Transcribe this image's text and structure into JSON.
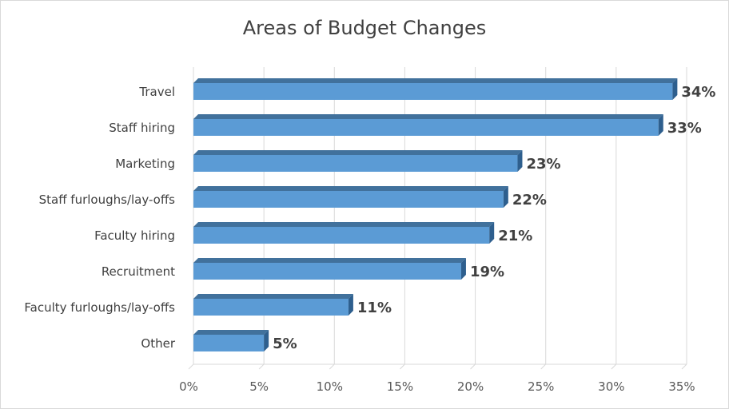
{
  "chart_data": {
    "type": "bar",
    "orientation": "horizontal",
    "title": "Areas of Budget Changes",
    "categories": [
      "Travel",
      "Staff hiring",
      "Marketing",
      "Staff furloughs/lay-offs",
      "Faculty hiring",
      "Recruitment",
      "Faculty furloughs/lay-offs",
      "Other"
    ],
    "values": [
      34,
      33,
      23,
      22,
      21,
      19,
      11,
      5
    ],
    "data_labels": [
      "34%",
      "33%",
      "23%",
      "22%",
      "21%",
      "19%",
      "11%",
      "5%"
    ],
    "xlim": [
      0,
      35
    ],
    "x_ticks": [
      "0%",
      "5%",
      "10%",
      "15%",
      "20%",
      "25%",
      "30%",
      "35%"
    ],
    "xlabel": "",
    "ylabel": "",
    "grid": true,
    "legend": "none",
    "bar_color": "#5b9bd5",
    "bar_side_color": "#2e5f8e",
    "bar_top_color": "#41719c"
  }
}
